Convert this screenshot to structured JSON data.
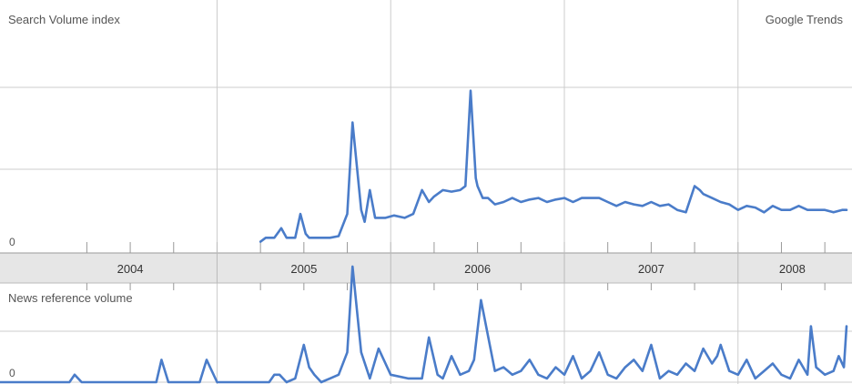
{
  "header": {
    "search_title": "Search Volume index",
    "brand": "Google Trends",
    "news_title": "News reference volume"
  },
  "colors": {
    "line": "#4a7cc9",
    "grid": "#cccccc",
    "axis_band": "#e6e6e6",
    "year_divider": "#bbbbbb",
    "text": "#555555"
  },
  "chart_data": [
    {
      "type": "line",
      "title": "Search Volume index",
      "ylabel": "",
      "y_ticks": [
        "0"
      ],
      "ylim": [
        0,
        3
      ],
      "grid": true,
      "x_range": [
        2003.75,
        2008.625
      ],
      "series": [
        {
          "x": [
            2005.25,
            2005.28,
            2005.33,
            2005.37,
            2005.4,
            2005.45,
            2005.48,
            2005.51,
            2005.53,
            2005.56,
            2005.6,
            2005.65,
            2005.7,
            2005.75,
            2005.78,
            2005.83,
            2005.85,
            2005.88,
            2005.91,
            2005.95,
            2005.97,
            2006.02,
            2006.08,
            2006.13,
            2006.18,
            2006.22,
            2006.25,
            2006.3,
            2006.35,
            2006.4,
            2006.43,
            2006.46,
            2006.49,
            2006.5,
            2006.53,
            2006.56,
            2006.6,
            2006.65,
            2006.7,
            2006.75,
            2006.8,
            2006.85,
            2006.9,
            2006.95,
            2007.0,
            2007.05,
            2007.1,
            2007.15,
            2007.2,
            2007.25,
            2007.3,
            2007.35,
            2007.4,
            2007.45,
            2007.5,
            2007.55,
            2007.6,
            2007.65,
            2007.7,
            2007.75,
            2007.78,
            2007.8,
            2007.85,
            2007.9,
            2007.95,
            2008.0,
            2008.05,
            2008.1,
            2008.15,
            2008.2,
            2008.25,
            2008.3,
            2008.35,
            2008.4,
            2008.45,
            2008.5,
            2008.55,
            2008.6,
            2008.625
          ],
          "values": [
            0.05,
            0.1,
            0.1,
            0.22,
            0.1,
            0.1,
            0.4,
            0.15,
            0.1,
            0.1,
            0.1,
            0.1,
            0.12,
            0.4,
            1.55,
            0.45,
            0.3,
            0.7,
            0.35,
            0.35,
            0.35,
            0.38,
            0.35,
            0.4,
            0.7,
            0.55,
            0.62,
            0.7,
            0.68,
            0.7,
            0.75,
            1.95,
            0.85,
            0.75,
            0.6,
            0.6,
            0.52,
            0.55,
            0.6,
            0.55,
            0.58,
            0.6,
            0.55,
            0.58,
            0.6,
            0.55,
            0.6,
            0.6,
            0.6,
            0.55,
            0.5,
            0.55,
            0.52,
            0.5,
            0.55,
            0.5,
            0.52,
            0.45,
            0.42,
            0.75,
            0.7,
            0.65,
            0.6,
            0.55,
            0.52,
            0.45,
            0.5,
            0.48,
            0.42,
            0.5,
            0.45,
            0.45,
            0.5,
            0.45,
            0.45,
            0.45,
            0.42,
            0.45,
            0.45
          ]
        }
      ]
    },
    {
      "type": "line",
      "title": "News reference volume",
      "ylabel": "",
      "y_ticks": [
        "0"
      ],
      "ylim": [
        0,
        2
      ],
      "grid": true,
      "x_range": [
        2003.75,
        2008.625
      ],
      "series": [
        {
          "x": [
            2003.75,
            2004.0,
            2004.15,
            2004.18,
            2004.22,
            2004.4,
            2004.55,
            2004.65,
            2004.68,
            2004.72,
            2004.8,
            2004.9,
            2004.94,
            2005.0,
            2005.2,
            2005.3,
            2005.33,
            2005.36,
            2005.4,
            2005.45,
            2005.5,
            2005.53,
            2005.56,
            2005.6,
            2005.65,
            2005.7,
            2005.75,
            2005.78,
            2005.83,
            2005.88,
            2005.93,
            2006.0,
            2006.1,
            2006.18,
            2006.22,
            2006.27,
            2006.3,
            2006.35,
            2006.4,
            2006.45,
            2006.48,
            2006.52,
            2006.6,
            2006.65,
            2006.7,
            2006.75,
            2006.8,
            2006.85,
            2006.9,
            2006.95,
            2007.0,
            2007.05,
            2007.1,
            2007.15,
            2007.2,
            2007.25,
            2007.3,
            2007.35,
            2007.4,
            2007.45,
            2007.5,
            2007.55,
            2007.6,
            2007.65,
            2007.7,
            2007.75,
            2007.8,
            2007.85,
            2007.88,
            2007.9,
            2007.95,
            2008.0,
            2008.05,
            2008.1,
            2008.15,
            2008.2,
            2008.25,
            2008.3,
            2008.35,
            2008.4,
            2008.42,
            2008.45,
            2008.5,
            2008.55,
            2008.58,
            2008.61,
            2008.625
          ],
          "values": [
            0,
            0,
            0,
            0.1,
            0,
            0,
            0,
            0,
            0.3,
            0,
            0,
            0,
            0.3,
            0,
            0,
            0,
            0.1,
            0.1,
            0,
            0.05,
            0.5,
            0.2,
            0.1,
            0,
            0.05,
            0.1,
            0.4,
            1.55,
            0.4,
            0.05,
            0.45,
            0.1,
            0.05,
            0.05,
            0.6,
            0.1,
            0.05,
            0.35,
            0.1,
            0.15,
            0.3,
            1.1,
            0.15,
            0.2,
            0.1,
            0.15,
            0.3,
            0.1,
            0.05,
            0.2,
            0.1,
            0.35,
            0.05,
            0.15,
            0.4,
            0.1,
            0.05,
            0.2,
            0.3,
            0.15,
            0.5,
            0.05,
            0.15,
            0.1,
            0.25,
            0.15,
            0.45,
            0.25,
            0.35,
            0.5,
            0.15,
            0.1,
            0.3,
            0.05,
            0.15,
            0.25,
            0.1,
            0.05,
            0.3,
            0.1,
            0.75,
            0.2,
            0.1,
            0.15,
            0.35,
            0.2,
            0.75
          ]
        }
      ]
    }
  ],
  "x_axis": {
    "years": [
      "2004",
      "2005",
      "2006",
      "2007",
      "2008"
    ]
  }
}
